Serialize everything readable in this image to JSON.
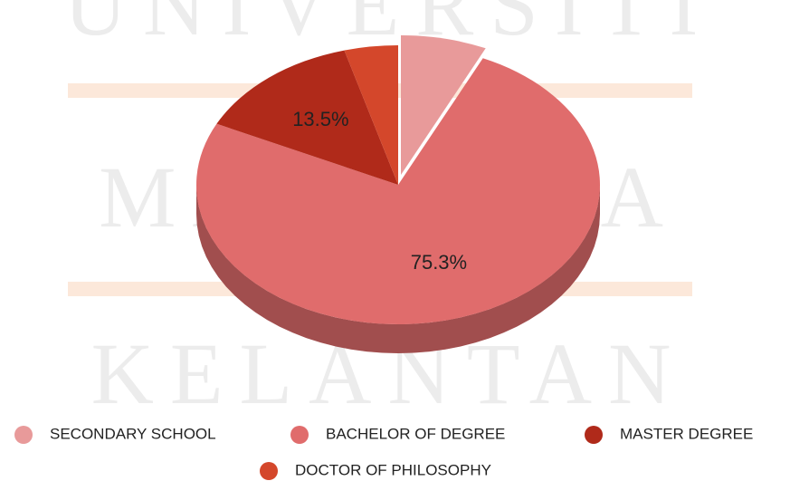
{
  "watermark": [
    "UNIVERSITI",
    "MALAYSIA",
    "KELANTAN"
  ],
  "chart_data": {
    "type": "pie3d",
    "categories": [
      "SECONDARY SCHOOL",
      "BACHELOR OF DEGREE",
      "MASTER DEGREE",
      "DOCTOR OF PHILOSOPHY"
    ],
    "values": [
      6.9,
      75.3,
      13.5,
      4.3
    ],
    "value_labels": [
      null,
      "75.3%",
      "13.5%",
      null
    ],
    "colors": [
      "#e89a9a",
      "#e06c6c",
      "#b02a1a",
      "#d4472b"
    ],
    "exploded": [
      true,
      false,
      false,
      false
    ],
    "legend": "bottom"
  }
}
